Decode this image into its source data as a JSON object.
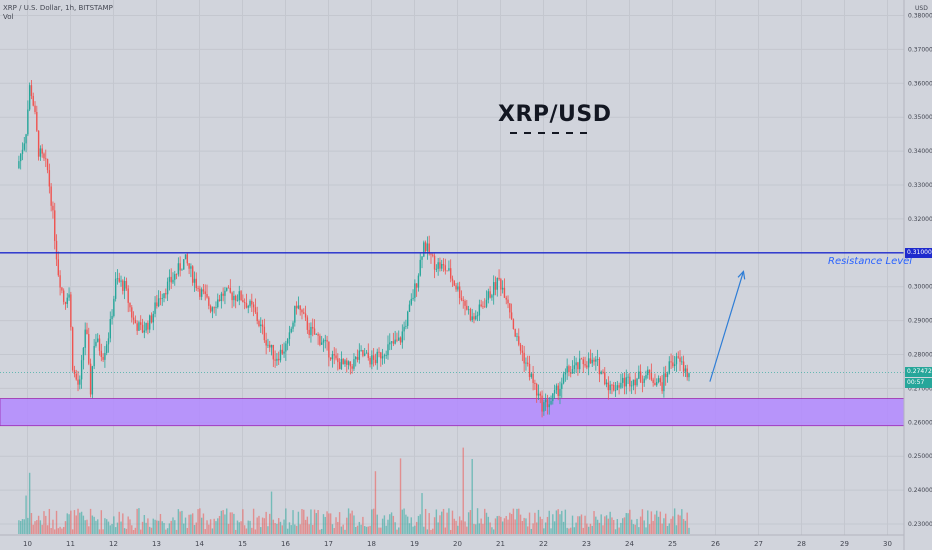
{
  "header": {
    "symbol_line": "XRP / U.S. Dollar, 1h, BITSTAMP",
    "volume_label": "Vol",
    "currency": "USD"
  },
  "annotations": {
    "title": "XRP/USD",
    "resistance_label": "Resistance Level"
  },
  "price_tags": {
    "resistance": "0.31000",
    "last_price": "0.27472",
    "countdown": "00:57"
  },
  "colors": {
    "background": "#d1d4dc",
    "up": "#26a69a",
    "down": "#ef5350",
    "resistance_line": "#1e2acd",
    "support_zone": "#b388ff",
    "arrow": "#2e7dd6"
  },
  "chart_data": {
    "type": "candlestick",
    "title": "XRP/USD",
    "xlabel": "",
    "ylabel": "",
    "x_ticks": [
      "10",
      "11",
      "12",
      "13",
      "14",
      "15",
      "16",
      "17",
      "18",
      "19",
      "20",
      "21",
      "22",
      "23",
      "24",
      "25",
      "26",
      "27",
      "28",
      "29",
      "30"
    ],
    "y_ticks": [
      "0.38000",
      "0.37000",
      "0.36000",
      "0.35000",
      "0.34000",
      "0.33000",
      "0.32000",
      "0.31000",
      "0.30000",
      "0.29000",
      "0.28000",
      "0.27000",
      "0.26000",
      "0.25000",
      "0.24000",
      "0.23000"
    ],
    "ylim": [
      0.2285,
      0.3835
    ],
    "resistance_level": 0.31,
    "support_zone": [
      0.259,
      0.267
    ],
    "last_price": 0.27472,
    "price_path": [
      [
        9.8,
        0.335
      ],
      [
        10.0,
        0.345
      ],
      [
        10.1,
        0.36
      ],
      [
        10.2,
        0.352
      ],
      [
        10.3,
        0.34
      ],
      [
        10.5,
        0.335
      ],
      [
        10.6,
        0.325
      ],
      [
        10.75,
        0.305
      ],
      [
        10.9,
        0.295
      ],
      [
        11.0,
        0.3
      ],
      [
        11.1,
        0.275
      ],
      [
        11.25,
        0.27
      ],
      [
        11.4,
        0.29
      ],
      [
        11.5,
        0.268
      ],
      [
        11.6,
        0.285
      ],
      [
        11.8,
        0.28
      ],
      [
        11.95,
        0.287
      ],
      [
        12.1,
        0.302
      ],
      [
        12.3,
        0.3
      ],
      [
        12.5,
        0.29
      ],
      [
        12.7,
        0.287
      ],
      [
        12.9,
        0.29
      ],
      [
        13.1,
        0.297
      ],
      [
        13.4,
        0.302
      ],
      [
        13.7,
        0.308
      ],
      [
        14.0,
        0.3
      ],
      [
        14.3,
        0.294
      ],
      [
        14.6,
        0.298
      ],
      [
        15.0,
        0.297
      ],
      [
        15.3,
        0.293
      ],
      [
        15.6,
        0.284
      ],
      [
        15.8,
        0.279
      ],
      [
        16.1,
        0.283
      ],
      [
        16.3,
        0.295
      ],
      [
        16.6,
        0.287
      ],
      [
        16.9,
        0.284
      ],
      [
        17.2,
        0.278
      ],
      [
        17.5,
        0.276
      ],
      [
        17.8,
        0.28
      ],
      [
        18.1,
        0.278
      ],
      [
        18.4,
        0.282
      ],
      [
        18.7,
        0.284
      ],
      [
        18.9,
        0.292
      ],
      [
        19.1,
        0.302
      ],
      [
        19.25,
        0.313
      ],
      [
        19.5,
        0.307
      ],
      [
        19.8,
        0.305
      ],
      [
        20.1,
        0.298
      ],
      [
        20.4,
        0.29
      ],
      [
        20.7,
        0.296
      ],
      [
        21.0,
        0.302
      ],
      [
        21.2,
        0.297
      ],
      [
        21.4,
        0.285
      ],
      [
        21.65,
        0.277
      ],
      [
        21.85,
        0.27
      ],
      [
        22.0,
        0.265
      ],
      [
        22.2,
        0.266
      ],
      [
        22.4,
        0.27
      ],
      [
        22.6,
        0.275
      ],
      [
        22.8,
        0.276
      ],
      [
        23.0,
        0.278
      ],
      [
        23.3,
        0.277
      ],
      [
        23.6,
        0.27
      ],
      [
        23.9,
        0.272
      ],
      [
        24.2,
        0.273
      ],
      [
        24.5,
        0.274
      ],
      [
        24.8,
        0.271
      ],
      [
        25.0,
        0.278
      ],
      [
        25.2,
        0.278
      ],
      [
        25.4,
        0.274
      ]
    ],
    "projection_arrow": {
      "from": [
        25.87,
        0.272
      ],
      "to": [
        26.65,
        0.3045
      ]
    }
  }
}
